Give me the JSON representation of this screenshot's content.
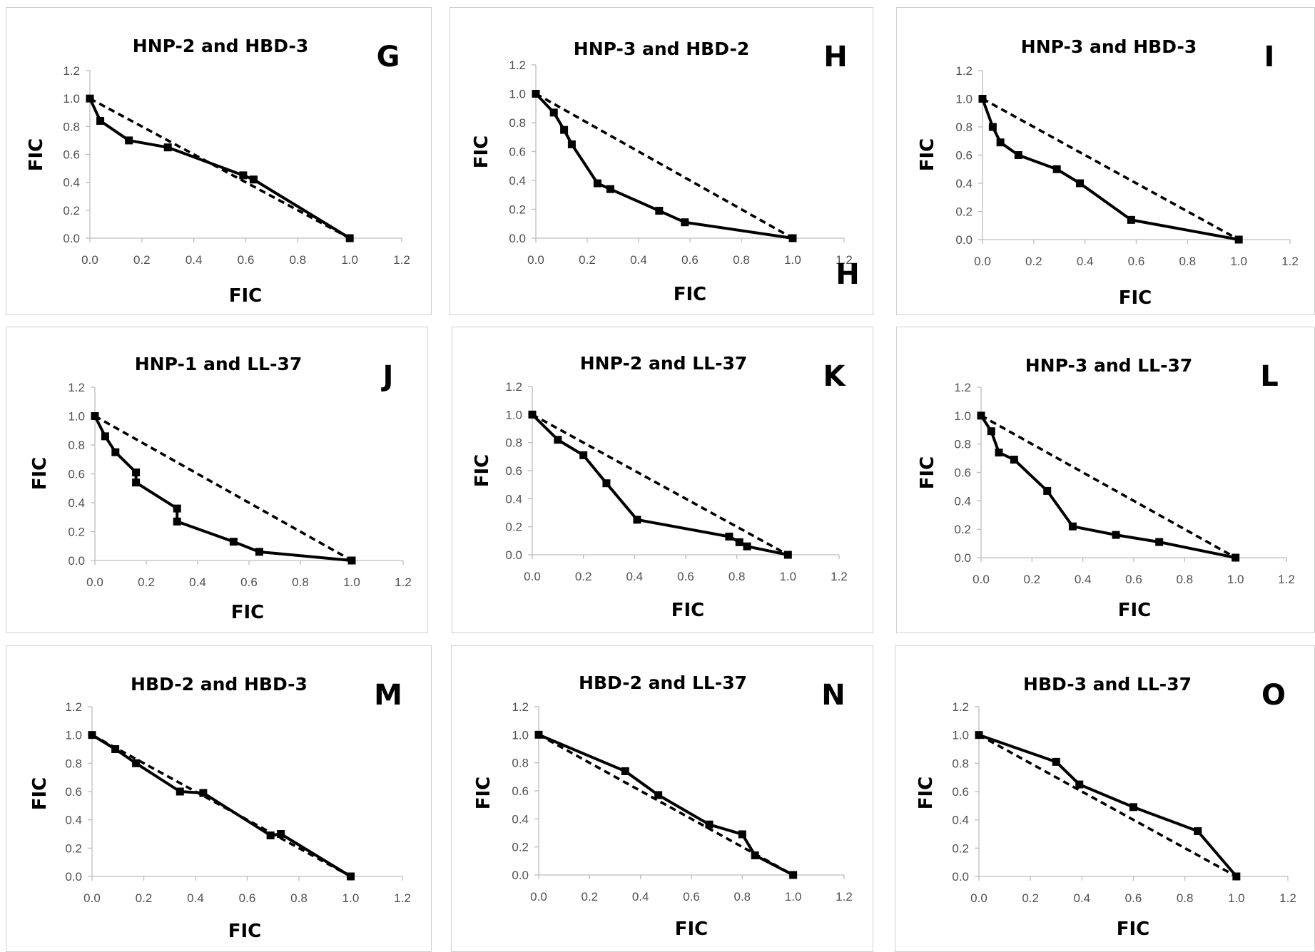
{
  "chart_data": [
    {
      "type": "line",
      "panel": "G",
      "title": "HNP-2 and HBD-3",
      "xlabel": "FIC",
      "ylabel": "FIC",
      "xlim": [
        0,
        1.2
      ],
      "ylim": [
        0,
        1.2
      ],
      "ticks": [
        "0.0",
        "0.2",
        "0.4",
        "0.6",
        "0.8",
        "1.0",
        "1.2"
      ],
      "series": [
        {
          "x": [
            0.0,
            0.04,
            0.15,
            0.3,
            0.59,
            0.63,
            1.0
          ],
          "y": [
            1.0,
            0.84,
            0.7,
            0.65,
            0.45,
            0.42,
            0.0
          ]
        },
        {
          "line_style": "dashed",
          "x": [
            0.0,
            1.0
          ],
          "y": [
            1.0,
            0.0
          ]
        }
      ]
    },
    {
      "type": "line",
      "panel": "H",
      "extra_label": "H",
      "title": "HNP-3 and HBD-2",
      "xlabel": "FIC",
      "ylabel": "FIC",
      "xlim": [
        0,
        1.2
      ],
      "ylim": [
        0,
        1.2
      ],
      "ticks": [
        "0.0",
        "0.2",
        "0.4",
        "0.6",
        "0.8",
        "1.0",
        "1.2"
      ],
      "series": [
        {
          "x": [
            0.0,
            0.07,
            0.11,
            0.14,
            0.24,
            0.29,
            0.48,
            0.58,
            1.0
          ],
          "y": [
            1.0,
            0.87,
            0.75,
            0.65,
            0.38,
            0.34,
            0.19,
            0.11,
            0.0
          ]
        },
        {
          "line_style": "dashed",
          "x": [
            0.0,
            1.0
          ],
          "y": [
            1.0,
            0.0
          ]
        }
      ]
    },
    {
      "type": "line",
      "panel": "I",
      "title": "HNP-3 and HBD-3",
      "xlabel": "FIC",
      "ylabel": "FIC",
      "xlim": [
        0,
        1.2
      ],
      "ylim": [
        0,
        1.2
      ],
      "ticks": [
        "0.0",
        "0.2",
        "0.4",
        "0.6",
        "0.8",
        "1.0",
        "1.2"
      ],
      "series": [
        {
          "x": [
            0.0,
            0.04,
            0.07,
            0.14,
            0.29,
            0.38,
            0.58,
            1.0
          ],
          "y": [
            1.0,
            0.8,
            0.69,
            0.6,
            0.5,
            0.4,
            0.14,
            0.0
          ]
        },
        {
          "line_style": "dashed",
          "x": [
            0.0,
            1.0
          ],
          "y": [
            1.0,
            0.0
          ]
        }
      ]
    },
    {
      "type": "line",
      "panel": "J",
      "title": "HNP-1 and LL-37",
      "xlabel": "FIC",
      "ylabel": "FIC",
      "xlim": [
        0,
        1.2
      ],
      "ylim": [
        0,
        1.2
      ],
      "ticks": [
        "0.0",
        "0.2",
        "0.4",
        "0.6",
        "0.8",
        "1.0",
        "1.2"
      ],
      "series": [
        {
          "x": [
            0.0,
            0.04,
            0.08,
            0.16,
            0.16,
            0.32,
            0.32,
            0.54,
            0.64,
            1.0
          ],
          "y": [
            1.0,
            0.86,
            0.75,
            0.61,
            0.54,
            0.36,
            0.27,
            0.13,
            0.06,
            0.0
          ]
        },
        {
          "line_style": "dashed",
          "x": [
            0.0,
            1.0
          ],
          "y": [
            1.0,
            0.0
          ]
        }
      ]
    },
    {
      "type": "line",
      "panel": "K",
      "title": "HNP-2 and LL-37",
      "xlabel": "FIC",
      "ylabel": "FIC",
      "xlim": [
        0,
        1.2
      ],
      "ylim": [
        0,
        1.2
      ],
      "ticks": [
        "0.0",
        "0.2",
        "0.4",
        "0.6",
        "0.8",
        "1.0",
        "1.2"
      ],
      "series": [
        {
          "x": [
            0.0,
            0.1,
            0.2,
            0.29,
            0.41,
            0.77,
            0.81,
            0.84,
            1.0
          ],
          "y": [
            1.0,
            0.82,
            0.71,
            0.51,
            0.25,
            0.13,
            0.09,
            0.06,
            0.0
          ]
        },
        {
          "line_style": "dashed",
          "x": [
            0.0,
            1.0
          ],
          "y": [
            1.0,
            0.0
          ]
        }
      ]
    },
    {
      "type": "line",
      "panel": "L",
      "title": "HNP-3 and LL-37",
      "xlabel": "FIC",
      "ylabel": "FIC",
      "xlim": [
        0,
        1.2
      ],
      "ylim": [
        0,
        1.2
      ],
      "ticks": [
        "0.0",
        "0.2",
        "0.4",
        "0.6",
        "0.8",
        "1.0",
        "1.2"
      ],
      "series": [
        {
          "x": [
            0.0,
            0.04,
            0.07,
            0.13,
            0.26,
            0.36,
            0.53,
            0.7,
            1.0
          ],
          "y": [
            1.0,
            0.89,
            0.74,
            0.69,
            0.47,
            0.22,
            0.16,
            0.11,
            0.0
          ]
        },
        {
          "line_style": "dashed",
          "x": [
            0.0,
            1.0
          ],
          "y": [
            1.0,
            0.0
          ]
        }
      ]
    },
    {
      "type": "line",
      "panel": "M",
      "title": "HBD-2 and HBD-3",
      "xlabel": "FIC",
      "ylabel": "FIC",
      "xlim": [
        0,
        1.2
      ],
      "ylim": [
        0,
        1.2
      ],
      "ticks": [
        "0.0",
        "0.2",
        "0.4",
        "0.6",
        "0.8",
        "1.0",
        "1.2"
      ],
      "series": [
        {
          "x": [
            0.0,
            0.09,
            0.17,
            0.34,
            0.43,
            0.69,
            0.73,
            1.0
          ],
          "y": [
            1.0,
            0.9,
            0.8,
            0.6,
            0.59,
            0.29,
            0.3,
            0.0
          ]
        },
        {
          "line_style": "dashed",
          "x": [
            0.0,
            1.0
          ],
          "y": [
            1.0,
            0.0
          ]
        }
      ]
    },
    {
      "type": "line",
      "panel": "N",
      "title": "HBD-2 and LL-37",
      "xlabel": "FIC",
      "ylabel": "FIC",
      "xlim": [
        0,
        1.2
      ],
      "ylim": [
        0,
        1.2
      ],
      "ticks": [
        "0.0",
        "0.2",
        "0.4",
        "0.6",
        "0.8",
        "1.0",
        "1.2"
      ],
      "series": [
        {
          "x": [
            0.0,
            0.34,
            0.47,
            0.67,
            0.8,
            0.85,
            1.0
          ],
          "y": [
            1.0,
            0.74,
            0.57,
            0.36,
            0.29,
            0.14,
            0.0
          ]
        },
        {
          "line_style": "dashed",
          "x": [
            0.0,
            1.0
          ],
          "y": [
            1.0,
            0.0
          ]
        }
      ]
    },
    {
      "type": "line",
      "panel": "O",
      "title": "HBD-3 and LL-37",
      "xlabel": "FIC",
      "ylabel": "FIC",
      "xlim": [
        0,
        1.2
      ],
      "ylim": [
        0,
        1.2
      ],
      "ticks": [
        "0.0",
        "0.2",
        "0.4",
        "0.6",
        "0.8",
        "1.0",
        "1.2"
      ],
      "series": [
        {
          "x": [
            0.0,
            0.3,
            0.39,
            0.6,
            0.85,
            1.0
          ],
          "y": [
            1.0,
            0.81,
            0.65,
            0.49,
            0.32,
            0.0
          ]
        },
        {
          "line_style": "dashed",
          "x": [
            0.0,
            1.0
          ],
          "y": [
            1.0,
            0.0
          ]
        }
      ]
    }
  ]
}
